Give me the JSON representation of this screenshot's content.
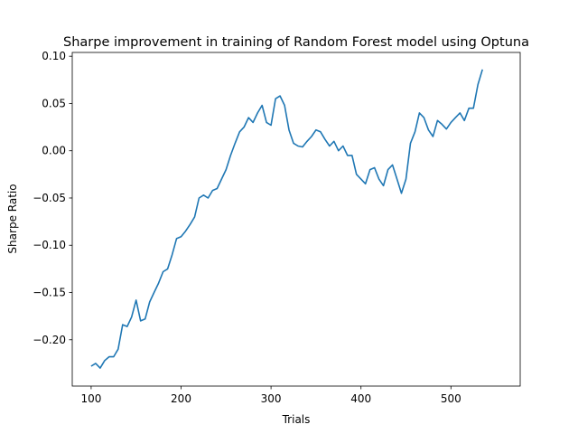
{
  "chart_data": {
    "type": "line",
    "title": "Sharpe improvement in training of Random Forest model using Optuna",
    "xlabel": "Trials",
    "ylabel": "Sharpe Ratio",
    "xlim": [
      79,
      577
    ],
    "ylim": [
      -0.249,
      0.104
    ],
    "xticks": [
      100,
      200,
      300,
      400,
      500
    ],
    "yticks": [
      -0.2,
      -0.15,
      -0.1,
      -0.05,
      0.0,
      0.05,
      0.1
    ],
    "ytick_labels": [
      "−0.20",
      "−0.15",
      "−0.10",
      "−0.05",
      "0.00",
      "0.05",
      "0.10"
    ],
    "grid": false,
    "series": [
      {
        "color": "#1f77b4",
        "x": [
          100,
          105,
          110,
          115,
          120,
          125,
          130,
          135,
          140,
          145,
          150,
          155,
          160,
          165,
          170,
          175,
          180,
          185,
          190,
          195,
          200,
          205,
          210,
          215,
          220,
          225,
          230,
          235,
          240,
          245,
          250,
          255,
          260,
          265,
          270,
          275,
          280,
          285,
          290,
          295,
          300,
          305,
          310,
          315,
          320,
          325,
          330,
          335,
          340,
          345,
          350,
          355,
          360,
          365,
          370,
          375,
          380,
          385,
          390,
          395,
          400,
          405,
          410,
          415,
          420,
          425,
          430,
          435,
          440,
          445,
          450,
          455,
          460,
          465,
          470,
          475,
          480,
          485,
          490,
          495,
          500,
          505,
          510,
          515,
          520,
          525,
          530,
          535
        ],
        "y": [
          -0.228,
          -0.225,
          -0.23,
          -0.222,
          -0.218,
          -0.218,
          -0.21,
          -0.184,
          -0.186,
          -0.176,
          -0.158,
          -0.18,
          -0.178,
          -0.16,
          -0.15,
          -0.14,
          -0.128,
          -0.125,
          -0.11,
          -0.093,
          -0.091,
          -0.085,
          -0.078,
          -0.07,
          -0.05,
          -0.047,
          -0.05,
          -0.042,
          -0.04,
          -0.03,
          -0.02,
          -0.005,
          0.008,
          0.02,
          0.025,
          0.035,
          0.03,
          0.04,
          0.048,
          0.03,
          0.027,
          0.055,
          0.058,
          0.048,
          0.022,
          0.008,
          0.005,
          0.004,
          0.01,
          0.015,
          0.022,
          0.02,
          0.012,
          0.005,
          0.01,
          0.0,
          0.005,
          -0.005,
          -0.005,
          -0.025,
          -0.03,
          -0.035,
          -0.02,
          -0.018,
          -0.03,
          -0.037,
          -0.02,
          -0.015,
          -0.03,
          -0.045,
          -0.03,
          0.008,
          0.02,
          0.04,
          0.035,
          0.022,
          0.015,
          0.032,
          0.028,
          0.023,
          0.03,
          0.035,
          0.04,
          0.032,
          0.045,
          0.045,
          0.07,
          0.086
        ]
      }
    ]
  }
}
